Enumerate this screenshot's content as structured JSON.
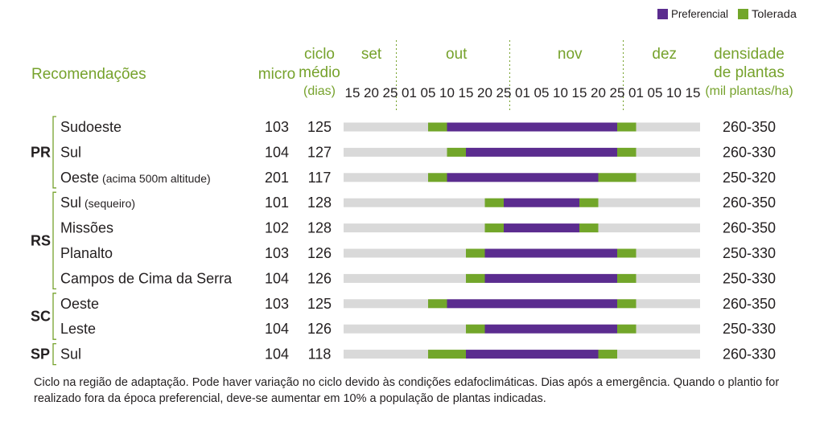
{
  "legend": [
    {
      "label": "Preferencial",
      "color": "#5b2c8f"
    },
    {
      "label": "Tolerada",
      "color": "#72a62a"
    }
  ],
  "colors": {
    "accent_green": "#76a22c",
    "track": "#d9d9d9",
    "preferencial": "#5b2c8f",
    "tolerada": "#72a62a",
    "text": "#231f20",
    "divider": "#76a22c"
  },
  "headers": {
    "recomendacoes": "Recomendações",
    "micro": "micro",
    "ciclo": [
      "ciclo",
      "médio",
      "(dias)"
    ],
    "densidade": [
      "densidade",
      "de plantas",
      "(mil plantas/ha)"
    ]
  },
  "footnote": [
    "Ciclo na região de adaptação. Pode haver variação no ciclo devido às condições edafoclimáticas. Dias após a emergência. Quando o plantio for",
    "realizado fora da época preferencial, deve-se aumentar em 10% a população de plantas indicadas."
  ],
  "chart_data": {
    "type": "gantt",
    "months": [
      {
        "name": "set",
        "ticks": [
          "15",
          "20",
          "25"
        ]
      },
      {
        "name": "out",
        "ticks": [
          "01",
          "05",
          "10",
          "15",
          "20",
          "25"
        ]
      },
      {
        "name": "nov",
        "ticks": [
          "01",
          "05",
          "10",
          "15",
          "20",
          "25"
        ]
      },
      {
        "name": "dez",
        "ticks": [
          "01",
          "05",
          "10",
          "15"
        ]
      }
    ],
    "states": [
      {
        "state": "PR",
        "rows": [
          {
            "region": "Sudoeste",
            "region_note": "",
            "micro": "103",
            "ciclo": "125",
            "densidade": "260 - 350",
            "segments": [
              {
                "from": "out 05",
                "to": "out 10",
                "kind": "Tolerada"
              },
              {
                "from": "out 10",
                "to": "nov 25",
                "kind": "Preferencial"
              },
              {
                "from": "nov 25",
                "to": "dez 01",
                "kind": "Tolerada"
              }
            ]
          },
          {
            "region": "Sul",
            "region_note": "",
            "micro": "104",
            "ciclo": "127",
            "densidade": "260 - 330",
            "segments": [
              {
                "from": "out 10",
                "to": "out 15",
                "kind": "Tolerada"
              },
              {
                "from": "out 15",
                "to": "nov 25",
                "kind": "Preferencial"
              },
              {
                "from": "nov 25",
                "to": "dez 01",
                "kind": "Tolerada"
              }
            ]
          },
          {
            "region": "Oeste",
            "region_note": "(acima 500m altitude)",
            "micro": "201",
            "ciclo": "117",
            "densidade": "250 - 320",
            "segments": [
              {
                "from": "out 05",
                "to": "out 10",
                "kind": "Tolerada"
              },
              {
                "from": "out 10",
                "to": "nov 20",
                "kind": "Preferencial"
              },
              {
                "from": "nov 20",
                "to": "dez 01",
                "kind": "Tolerada"
              }
            ]
          }
        ]
      },
      {
        "state": "RS",
        "rows": [
          {
            "region": "Sul",
            "region_note": "(sequeiro)",
            "micro": "101",
            "ciclo": "128",
            "densidade": "260 - 350",
            "segments": [
              {
                "from": "out 20",
                "to": "out 25",
                "kind": "Tolerada"
              },
              {
                "from": "out 25",
                "to": "nov 15",
                "kind": "Preferencial"
              },
              {
                "from": "nov 15",
                "to": "nov 20",
                "kind": "Tolerada"
              }
            ]
          },
          {
            "region": "Missões",
            "region_note": "",
            "micro": "102",
            "ciclo": "128",
            "densidade": "260 - 350",
            "segments": [
              {
                "from": "out 20",
                "to": "out 25",
                "kind": "Tolerada"
              },
              {
                "from": "out 25",
                "to": "nov 15",
                "kind": "Preferencial"
              },
              {
                "from": "nov 15",
                "to": "nov 20",
                "kind": "Tolerada"
              }
            ]
          },
          {
            "region": "Planalto",
            "region_note": "",
            "micro": "103",
            "ciclo": "126",
            "densidade": "250 - 330",
            "segments": [
              {
                "from": "out 15",
                "to": "out 20",
                "kind": "Tolerada"
              },
              {
                "from": "out 20",
                "to": "nov 25",
                "kind": "Preferencial"
              },
              {
                "from": "nov 25",
                "to": "dez 01",
                "kind": "Tolerada"
              }
            ]
          },
          {
            "region": "Campos de Cima da Serra",
            "region_note": "",
            "micro": "104",
            "ciclo": "126",
            "densidade": "250 - 330",
            "segments": [
              {
                "from": "out 15",
                "to": "out 20",
                "kind": "Tolerada"
              },
              {
                "from": "out 20",
                "to": "nov 25",
                "kind": "Preferencial"
              },
              {
                "from": "nov 25",
                "to": "dez 01",
                "kind": "Tolerada"
              }
            ]
          }
        ]
      },
      {
        "state": "SC",
        "rows": [
          {
            "region": "Oeste",
            "region_note": "",
            "micro": "103",
            "ciclo": "125",
            "densidade": "260 - 350",
            "segments": [
              {
                "from": "out 05",
                "to": "out 10",
                "kind": "Tolerada"
              },
              {
                "from": "out 10",
                "to": "nov 25",
                "kind": "Preferencial"
              },
              {
                "from": "nov 25",
                "to": "dez 01",
                "kind": "Tolerada"
              }
            ]
          },
          {
            "region": "Leste",
            "region_note": "",
            "micro": "104",
            "ciclo": "126",
            "densidade": "250 - 330",
            "segments": [
              {
                "from": "out 15",
                "to": "out 20",
                "kind": "Tolerada"
              },
              {
                "from": "out 20",
                "to": "nov 25",
                "kind": "Preferencial"
              },
              {
                "from": "nov 25",
                "to": "dez 01",
                "kind": "Tolerada"
              }
            ]
          }
        ]
      },
      {
        "state": "SP",
        "rows": [
          {
            "region": "Sul",
            "region_note": "",
            "micro": "104",
            "ciclo": "118",
            "densidade": "260 - 330",
            "segments": [
              {
                "from": "out 05",
                "to": "out 15",
                "kind": "Tolerada"
              },
              {
                "from": "out 15",
                "to": "nov 20",
                "kind": "Preferencial"
              },
              {
                "from": "nov 20",
                "to": "nov 25",
                "kind": "Tolerada"
              }
            ]
          }
        ]
      }
    ]
  }
}
